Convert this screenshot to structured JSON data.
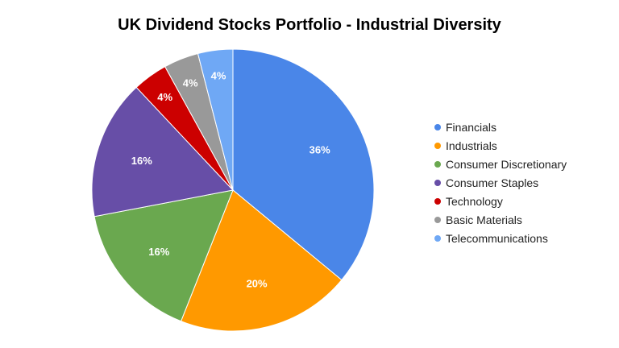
{
  "chart_data": {
    "type": "pie",
    "title": "UK Dividend Stocks Portfolio - Industrial Diversity",
    "start_angle": "top",
    "direction": "clockwise",
    "legend_position": "right",
    "slices": [
      {
        "label": "Financials",
        "value": 36,
        "display": "36%",
        "color": "#4a86e8"
      },
      {
        "label": "Industrials",
        "value": 20,
        "display": "20%",
        "color": "#ff9900"
      },
      {
        "label": "Consumer Discretionary",
        "value": 16,
        "display": "16%",
        "color": "#6aa84f"
      },
      {
        "label": "Consumer Staples",
        "value": 16,
        "display": "16%",
        "color": "#674ea7"
      },
      {
        "label": "Technology",
        "value": 4,
        "display": "4%",
        "color": "#cc0000"
      },
      {
        "label": "Basic Materials",
        "value": 4,
        "display": "4%",
        "color": "#999999"
      },
      {
        "label": "Telecommunications",
        "value": 4,
        "display": "4%",
        "color": "#6fa8f5"
      }
    ]
  }
}
